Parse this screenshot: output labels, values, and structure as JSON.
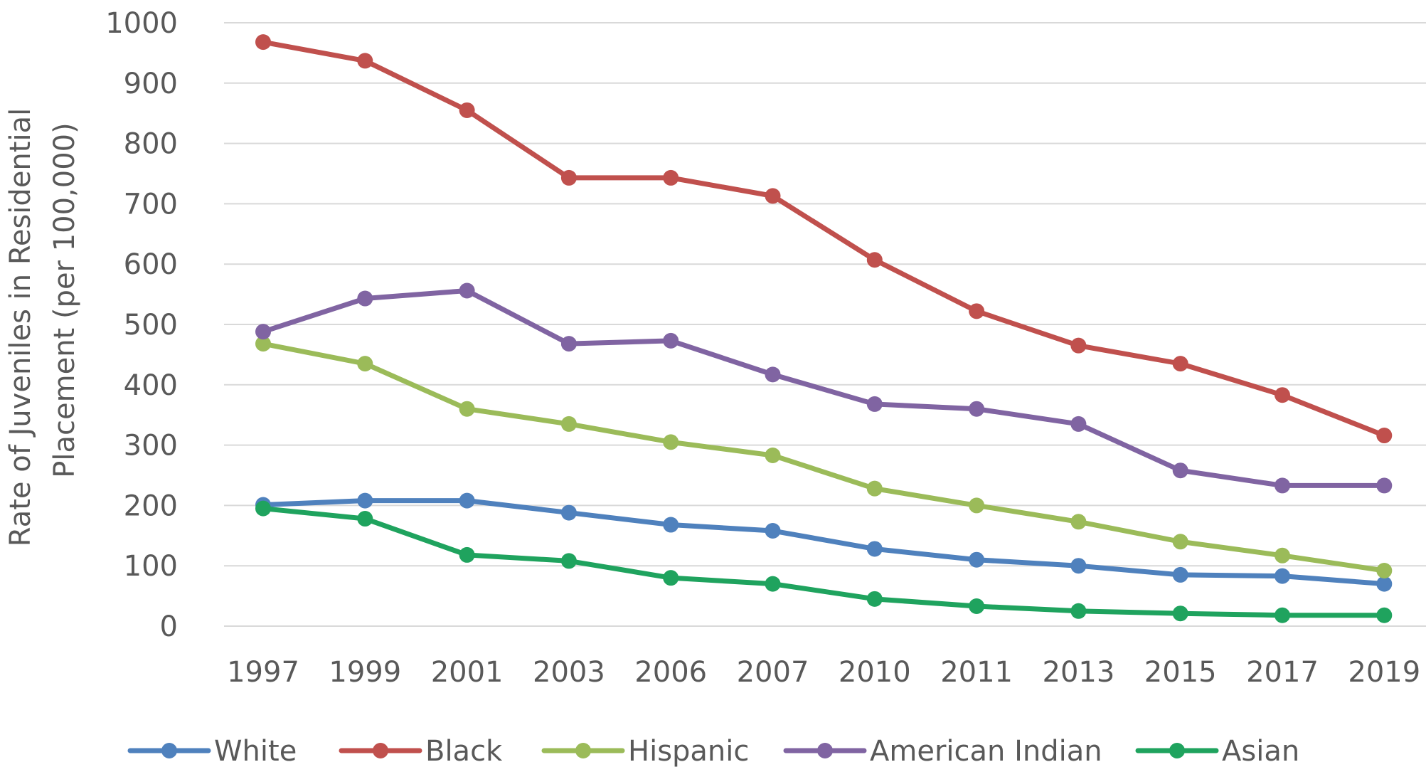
{
  "chart_data": {
    "type": "line",
    "title": "",
    "xlabel": "",
    "ylabel_lines": [
      "Rate of Juveniles in Residential",
      "Placement (per 100,000)"
    ],
    "ylim": [
      0,
      1000
    ],
    "yticks": [
      "0",
      "100",
      "200",
      "300",
      "400",
      "500",
      "600",
      "700",
      "800",
      "900",
      "1000"
    ],
    "grid": true,
    "legend_position": "bottom",
    "categories": [
      "1997",
      "1999",
      "2001",
      "2003",
      "2006",
      "2007",
      "2010",
      "2011",
      "2013",
      "2015",
      "2017",
      "2019"
    ],
    "series": [
      {
        "name": "White",
        "color": "#4F81BD",
        "values": [
          201,
          208,
          208,
          188,
          168,
          158,
          128,
          110,
          100,
          85,
          83,
          70
        ]
      },
      {
        "name": "Black",
        "color": "#C0504D",
        "values": [
          968,
          937,
          855,
          743,
          743,
          713,
          607,
          522,
          465,
          435,
          383,
          316
        ]
      },
      {
        "name": "Hispanic",
        "color": "#9BBB59",
        "values": [
          468,
          435,
          360,
          335,
          305,
          283,
          228,
          200,
          173,
          140,
          117,
          92
        ]
      },
      {
        "name": "American Indian",
        "color": "#8064A2",
        "values": [
          488,
          543,
          556,
          468,
          473,
          417,
          368,
          360,
          335,
          258,
          233,
          233
        ]
      },
      {
        "name": "Asian",
        "color": "#1FA35E",
        "values": [
          195,
          178,
          118,
          108,
          80,
          70,
          45,
          33,
          25,
          21,
          18,
          18
        ]
      }
    ]
  }
}
